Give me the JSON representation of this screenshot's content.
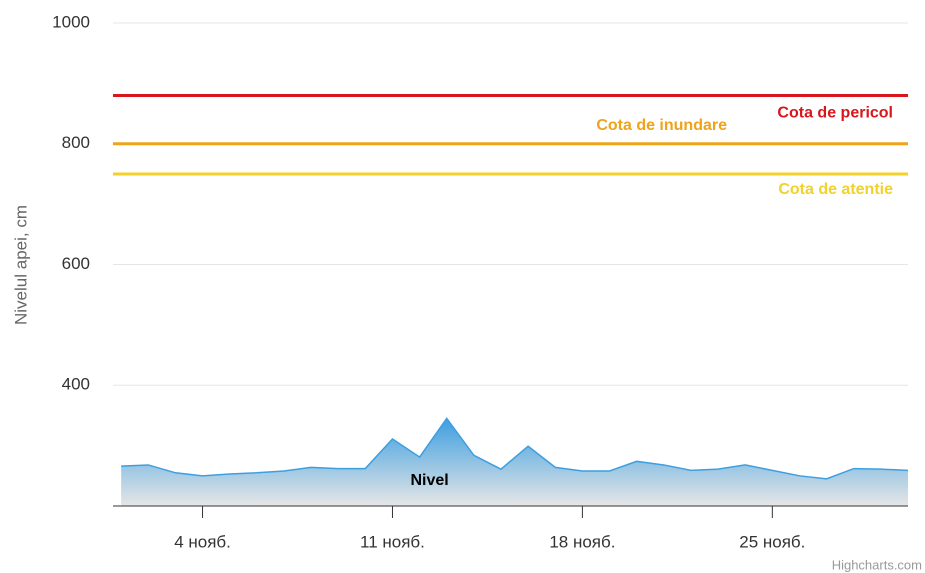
{
  "chart_data": {
    "type": "area",
    "yaxis_title": "Nivelul apei, cm",
    "credits": "Highcharts.com",
    "x": [
      1,
      2,
      3,
      4,
      5,
      6,
      7,
      8,
      9,
      10,
      11,
      12,
      13,
      14,
      15,
      16,
      17,
      18,
      19,
      20,
      21,
      22,
      23,
      24,
      25,
      26,
      27,
      28,
      29,
      30
    ],
    "series": [
      {
        "name": "Nivel",
        "color": "#3d9fe0",
        "values": [
          266,
          268,
          255,
          250,
          253,
          255,
          258,
          264,
          262,
          262,
          311,
          281,
          345,
          284,
          261,
          299,
          264,
          258,
          258,
          274,
          268,
          259,
          261,
          268,
          259,
          250,
          245,
          262,
          261,
          259
        ]
      }
    ],
    "xlim": [
      0.7,
      30
    ],
    "xticks": [
      {
        "value": 4,
        "label": "4 нояб."
      },
      {
        "value": 11,
        "label": "11 нояб."
      },
      {
        "value": 18,
        "label": "18 нояб."
      },
      {
        "value": 25,
        "label": "25 нояб."
      }
    ],
    "ylim": [
      200,
      1000
    ],
    "yticks": [
      400,
      600,
      800,
      1000
    ],
    "grid": true,
    "plot_lines": [
      {
        "value": 880,
        "label": "Cota de pericol",
        "color": "#d9161c"
      },
      {
        "value": 800,
        "label": "Cota de inundare",
        "color": "#eea319"
      },
      {
        "value": 750,
        "label": "Cota de atentie",
        "color": "#f2d12a"
      }
    ]
  }
}
